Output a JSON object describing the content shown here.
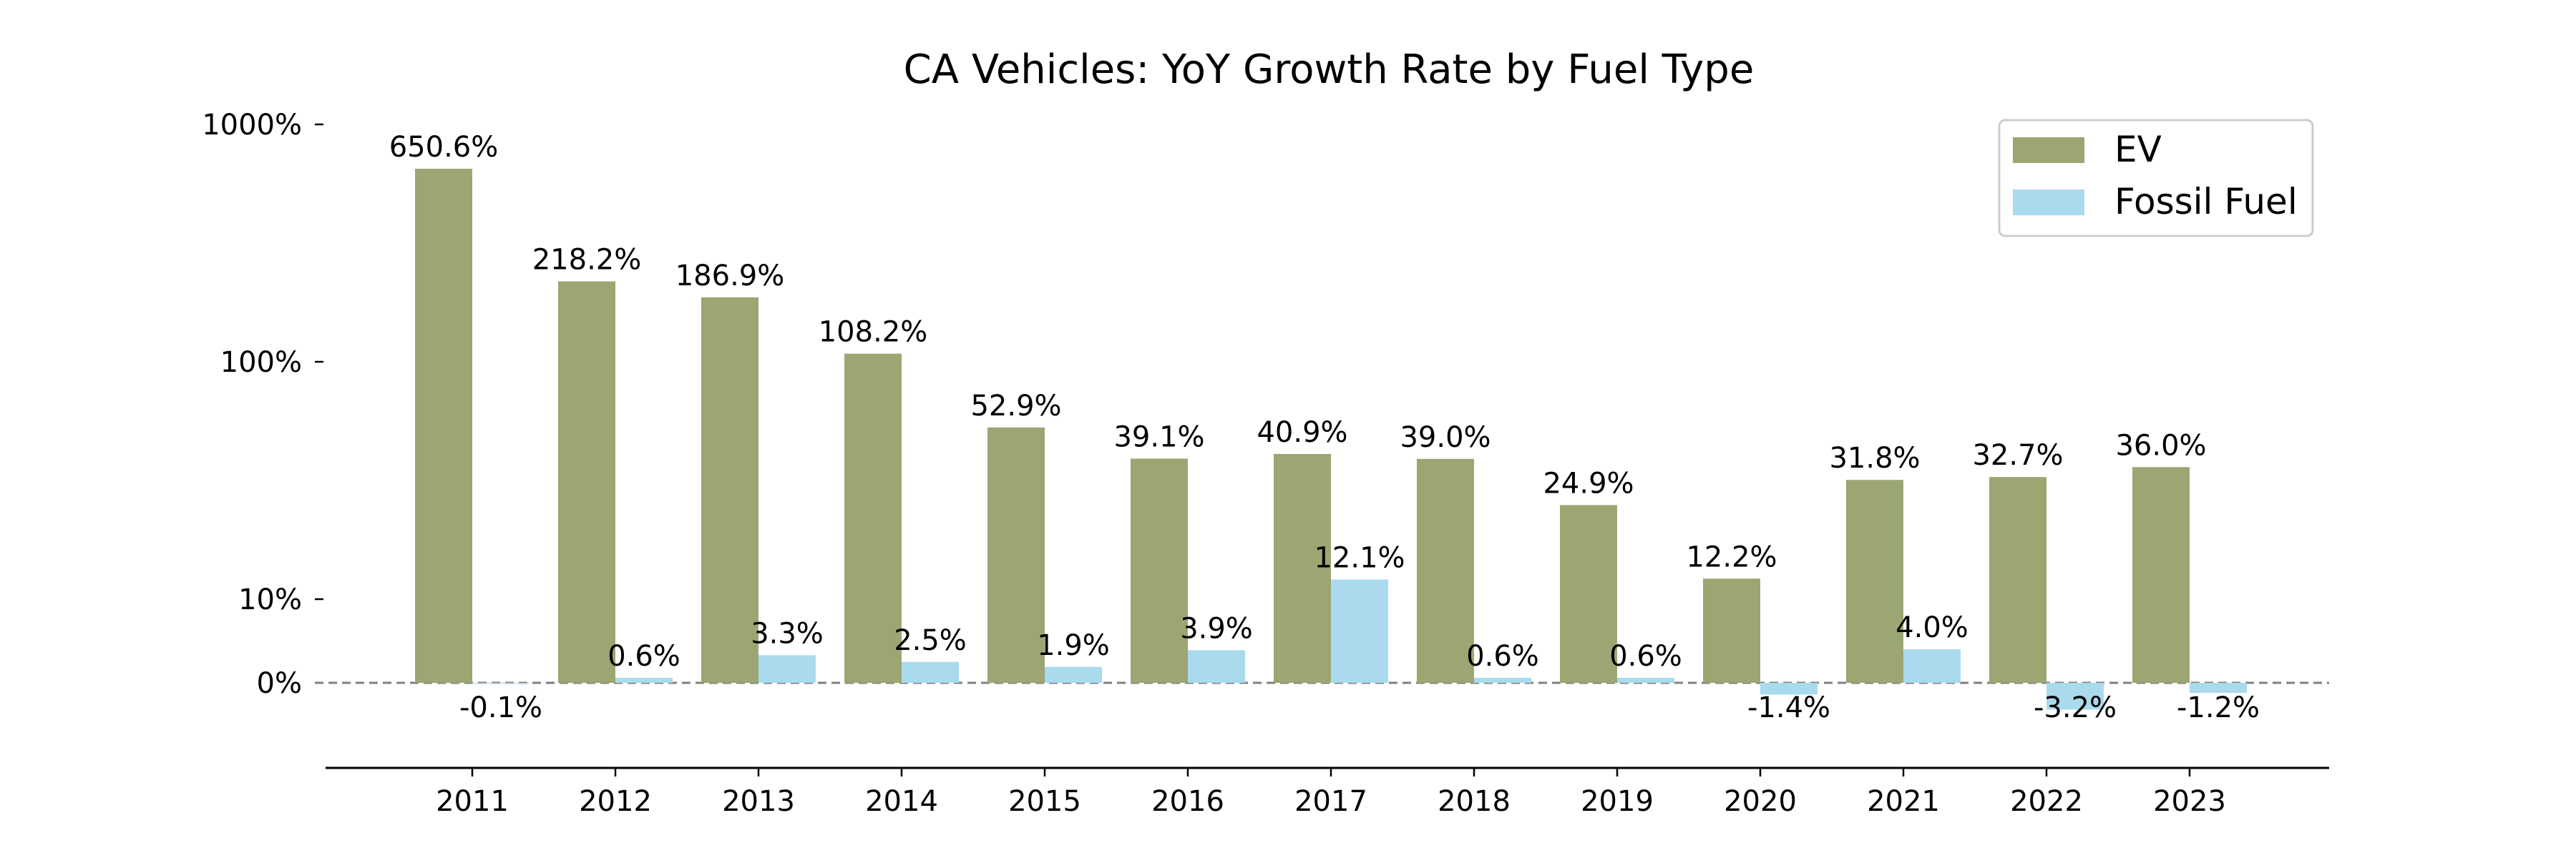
{
  "chart_data": {
    "type": "bar",
    "title": "CA Vehicles: YoY Growth Rate by Fuel Type",
    "xlabel": "",
    "ylabel": "",
    "y_scale": "symlog",
    "y_tick_labels": [
      "0%",
      "10%",
      "100%",
      "1000%"
    ],
    "y_tick_values": [
      0,
      10,
      100,
      1000
    ],
    "ylim": [
      -10,
      1800
    ],
    "categories": [
      "2011",
      "2012",
      "2013",
      "2014",
      "2015",
      "2016",
      "2017",
      "2018",
      "2019",
      "2020",
      "2021",
      "2022",
      "2023"
    ],
    "series": [
      {
        "name": "EV",
        "color": "#9ba672",
        "values": [
          650.6,
          218.2,
          186.9,
          108.2,
          52.9,
          39.1,
          40.9,
          39.0,
          24.9,
          12.2,
          31.8,
          32.7,
          36.0
        ],
        "labels": [
          "650.6%",
          "218.2%",
          "186.9%",
          "108.2%",
          "52.9%",
          "39.1%",
          "40.9%",
          "39.0%",
          "24.9%",
          "12.2%",
          "31.8%",
          "32.7%",
          "36.0%"
        ]
      },
      {
        "name": "Fossil Fuel",
        "color": "#a9daed",
        "values": [
          -0.1,
          0.6,
          3.3,
          2.5,
          1.9,
          3.9,
          12.1,
          0.6,
          0.6,
          -1.4,
          4.0,
          -3.2,
          -1.2
        ],
        "labels": [
          "-0.1%",
          "0.6%",
          "3.3%",
          "2.5%",
          "1.9%",
          "3.9%",
          "12.1%",
          "0.6%",
          "0.6%",
          "-1.4%",
          "4.0%",
          "-3.2%",
          "-1.2%"
        ]
      }
    ],
    "zero_line": "dashed",
    "grid": false,
    "legend_position": "top-right"
  }
}
